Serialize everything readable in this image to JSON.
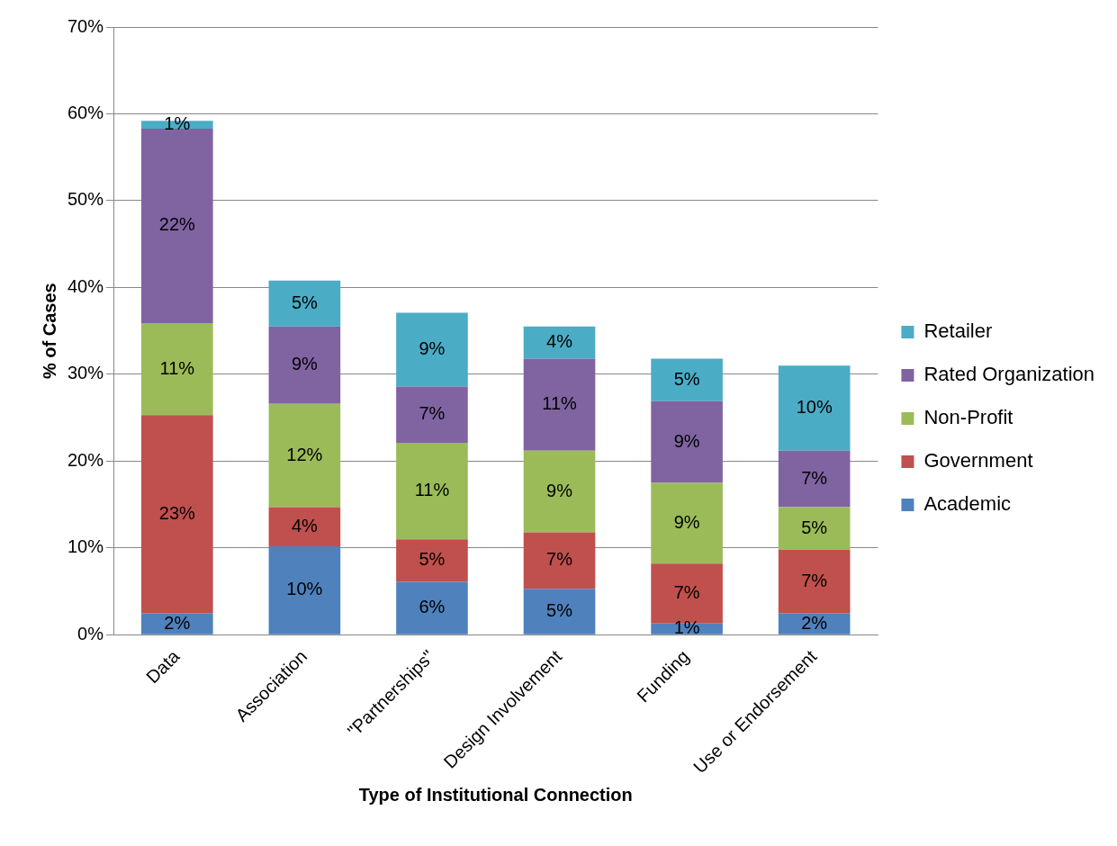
{
  "chart_data": {
    "type": "bar",
    "stacked": true,
    "xlabel": "Type of Institutional Connection",
    "ylabel": "% of Cases",
    "categories": [
      "Data",
      "Association",
      "\"Partnerships\"",
      "Design Involvement",
      "Funding",
      "Use or Endorsement"
    ],
    "series": [
      {
        "name": "Academic",
        "color": "#4f81bd",
        "values": [
          2.5,
          10.2,
          6.1,
          5.3,
          1.3,
          2.5
        ],
        "value_labels": [
          "2%",
          "10%",
          "6%",
          "5%",
          "1%",
          "2%"
        ]
      },
      {
        "name": "Government",
        "color": "#c0504d",
        "values": [
          22.8,
          4.5,
          4.9,
          6.5,
          6.9,
          7.3
        ],
        "value_labels": [
          "23%",
          "4%",
          "5%",
          "7%",
          "7%",
          "7%"
        ]
      },
      {
        "name": "Non-Profit",
        "color": "#9bbb59",
        "values": [
          10.6,
          11.9,
          11.1,
          9.4,
          9.3,
          4.9
        ],
        "value_labels": [
          "11%",
          "12%",
          "11%",
          "9%",
          "9%",
          "5%"
        ]
      },
      {
        "name": "Rated Organization",
        "color": "#8064a2",
        "values": [
          22.4,
          8.9,
          6.5,
          10.6,
          9.4,
          6.5
        ],
        "value_labels": [
          "22%",
          "9%",
          "7%",
          "11%",
          "9%",
          "7%"
        ]
      },
      {
        "name": "Retailer",
        "color": "#4bacc6",
        "values": [
          0.9,
          5.3,
          8.5,
          3.7,
          4.9,
          9.8
        ],
        "value_labels": [
          "1%",
          "5%",
          "9%",
          "4%",
          "5%",
          "10%"
        ]
      }
    ],
    "ylim": [
      0,
      70
    ],
    "yticks": [
      {
        "value": 0,
        "label": "0%"
      },
      {
        "value": 10,
        "label": "10%"
      },
      {
        "value": 20,
        "label": "20%"
      },
      {
        "value": 30,
        "label": "30%"
      },
      {
        "value": 40,
        "label": "40%"
      },
      {
        "value": 50,
        "label": "50%"
      },
      {
        "value": 60,
        "label": "60%"
      },
      {
        "value": 70,
        "label": "70%"
      }
    ],
    "grid": "y",
    "legend": "right"
  }
}
